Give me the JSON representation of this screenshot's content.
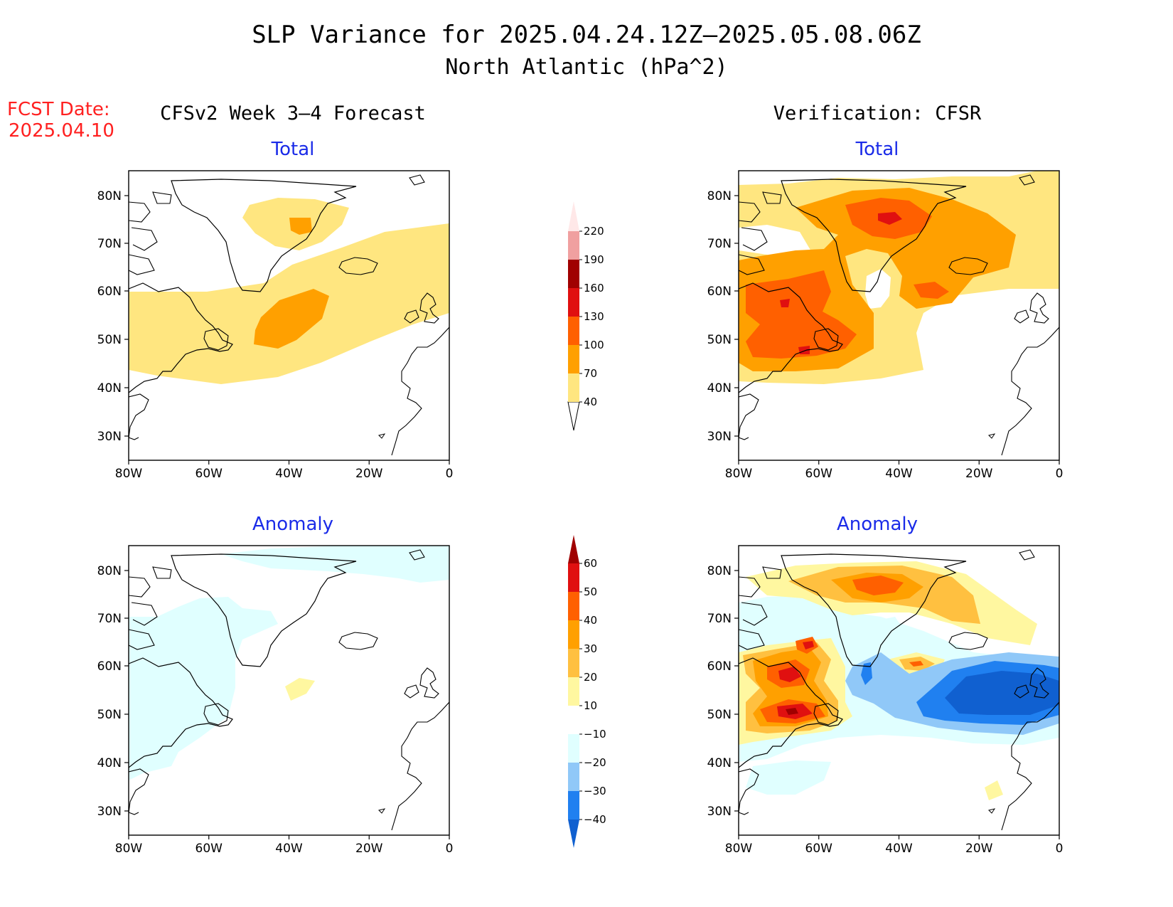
{
  "title": "SLP Variance for 2025.04.24.12Z–2025.05.08.06Z",
  "subtitle": "North Atlantic (hPa^2)",
  "fcst_label": "FCST Date:",
  "fcst_date": "2025.04.10",
  "forecast_header": "CFSv2 Week 3–4 Forecast",
  "verification_header": "Verification: CFSR",
  "panel_labels": {
    "total": "Total",
    "anomaly": "Anomaly"
  },
  "lat_ticks": [
    "80N",
    "70N",
    "60N",
    "50N",
    "40N",
    "30N"
  ],
  "lon_ticks": [
    "80W",
    "60W",
    "40W",
    "20W",
    "0"
  ],
  "colors": {
    "title": "#000000",
    "fcst": "#ff2020",
    "panel_label": "#1a2be8",
    "coast": "#000000"
  },
  "total_colorbar": {
    "levels": [
      "40",
      "70",
      "100",
      "130",
      "160",
      "190",
      "220"
    ],
    "colors": [
      "#ffe680",
      "#ffa000",
      "#ff6000",
      "#e01010",
      "#a00000",
      "#f0a0a0",
      "#ffe8e8"
    ]
  },
  "anomaly_colorbar": {
    "levels": [
      "−40",
      "−30",
      "−20",
      "−10",
      "10",
      "20",
      "30",
      "40",
      "50",
      "60"
    ],
    "colors": [
      "#1060d0",
      "#2080f0",
      "#90c8f8",
      "#e0ffff",
      "#ffffff",
      "#fff7a0",
      "#ffc040",
      "#ffa000",
      "#ff6000",
      "#e01010",
      "#a00000"
    ]
  }
}
